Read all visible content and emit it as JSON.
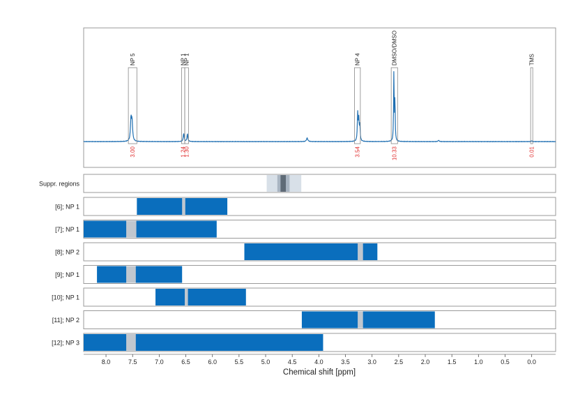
{
  "chart_data": {
    "type": "nmr-spectrum-with-regions",
    "xlabel": "Chemical shift [ppm]",
    "x_reversed": true,
    "xlim": [
      8.42,
      -0.45
    ],
    "x_ticks": [
      8.0,
      7.5,
      7.0,
      6.5,
      6.0,
      5.5,
      5.0,
      4.5,
      4.0,
      3.5,
      3.0,
      2.5,
      2.0,
      1.5,
      1.0,
      0.5,
      0.0
    ],
    "x_tick_labels": [
      "8.0",
      "7.5",
      "7.0",
      "6.5",
      "6.0",
      "5.5",
      "5.0",
      "4.5",
      "4.0",
      "3.5",
      "3.0",
      "2.5",
      "2.0",
      "1.5",
      "1.0",
      "0.5",
      "0.0"
    ],
    "grid": "vertical dotted",
    "colors": {
      "spectrum": "#1f6fb2",
      "region": "#0a6ebd",
      "gap": "#c0c7cf",
      "integral": "#e03030",
      "box": "#888888",
      "suppr_light": "#d8e0e8",
      "suppr_mid": "#a9b5c2",
      "suppr_dark": "#5f6b77"
    },
    "spectrum": {
      "peaks": [
        {
          "ppm": 7.53,
          "height": 0.32,
          "width": 0.012
        },
        {
          "ppm": 7.51,
          "height": 0.26,
          "width": 0.012
        },
        {
          "ppm": 6.54,
          "height": 0.12,
          "width": 0.01
        },
        {
          "ppm": 6.47,
          "height": 0.11,
          "width": 0.01
        },
        {
          "ppm": 4.22,
          "height": 0.05,
          "width": 0.015
        },
        {
          "ppm": 3.27,
          "height": 0.4,
          "width": 0.008
        },
        {
          "ppm": 3.25,
          "height": 0.3,
          "width": 0.008
        },
        {
          "ppm": 3.23,
          "height": 0.22,
          "width": 0.008
        },
        {
          "ppm": 2.59,
          "height": 1.0,
          "width": 0.006
        },
        {
          "ppm": 2.57,
          "height": 0.6,
          "width": 0.006
        },
        {
          "ppm": 1.75,
          "height": 0.02,
          "width": 0.01
        },
        {
          "ppm": 0.0,
          "height": 0.01,
          "width": 0.01
        }
      ],
      "annotations": [
        {
          "label": "NP 5",
          "from": 7.58,
          "to": 7.42,
          "integral": "3.00"
        },
        {
          "label": "NP 1",
          "from": 6.58,
          "to": 6.52,
          "integral": "1.24"
        },
        {
          "label": "NP 1",
          "from": 6.52,
          "to": 6.45,
          "integral": "1.30"
        },
        {
          "label": "NP 4",
          "from": 3.33,
          "to": 3.22,
          "integral": "3.54"
        },
        {
          "label": "DMSO/DMSO",
          "from": 2.64,
          "to": 2.52,
          "integral": "10.33"
        },
        {
          "label": "TMS",
          "from": 0.02,
          "to": -0.02,
          "integral": "0.01"
        }
      ]
    },
    "suppression": {
      "label": "Suppr. regions",
      "bands": [
        {
          "from": 4.98,
          "to": 4.33,
          "shade": "light"
        },
        {
          "from": 4.78,
          "to": 4.55,
          "shade": "mid"
        },
        {
          "from": 4.72,
          "to": 4.62,
          "shade": "dark"
        }
      ]
    },
    "regions": [
      {
        "label": "[6]; NP 1",
        "from": 7.42,
        "to": 5.72,
        "gaps": [
          [
            6.57,
            6.51
          ]
        ]
      },
      {
        "label": "[7]; NP 1",
        "from": 8.42,
        "to": 5.92,
        "gaps": [
          [
            7.62,
            7.43
          ]
        ]
      },
      {
        "label": "[8]; NP 2",
        "from": 5.4,
        "to": 2.9,
        "gaps": [
          [
            3.27,
            3.17
          ]
        ]
      },
      {
        "label": "[9]; NP 1",
        "from": 8.17,
        "to": 6.57,
        "gaps": [
          [
            7.62,
            7.44
          ]
        ]
      },
      {
        "label": "[10]; NP 1",
        "from": 7.07,
        "to": 5.37,
        "gaps": [
          [
            6.52,
            6.46
          ]
        ]
      },
      {
        "label": "[11]; NP 2",
        "from": 4.32,
        "to": 1.82,
        "gaps": [
          [
            3.27,
            3.17
          ]
        ]
      },
      {
        "label": "[12]; NP 3",
        "from": 8.42,
        "to": 3.92,
        "gaps": [
          [
            7.62,
            7.44
          ]
        ]
      }
    ]
  }
}
